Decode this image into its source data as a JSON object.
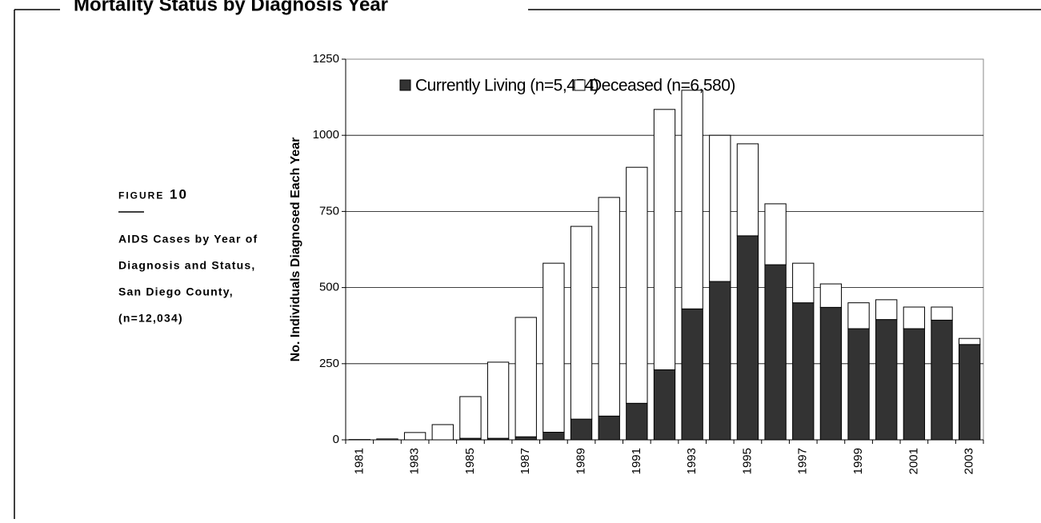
{
  "header": {
    "title": "Mortality Status by Diagnosis Year"
  },
  "figure": {
    "label": "Figure 10",
    "caption": [
      "AIDS Cases by Year of",
      "Diagnosis and Status,",
      "San Diego County,",
      "(n=12,034)"
    ]
  },
  "chart_data": {
    "type": "stacked-bar",
    "y_label": "No. Individuals Diagnosed Each Year",
    "categories": [
      "1981",
      null,
      "1983",
      null,
      "1985",
      null,
      "1987",
      null,
      "1989",
      null,
      "1991",
      null,
      "1993",
      null,
      "1995",
      null,
      "1997",
      null,
      "1999",
      null,
      "2001",
      null,
      "2003"
    ],
    "series": [
      {
        "name": "Currently Living (n=5,454)",
        "color": "#333333",
        "values": [
          0,
          0,
          0,
          0,
          5,
          5,
          10,
          25,
          68,
          78,
          120,
          230,
          430,
          520,
          670,
          575,
          450,
          435,
          365,
          395,
          365,
          393,
          313
        ]
      },
      {
        "name": "Deceased (n=6,580)",
        "color": "#ffffff",
        "values": [
          1,
          3,
          24,
          50,
          137,
          250,
          392,
          555,
          633,
          718,
          775,
          855,
          718,
          480,
          302,
          200,
          130,
          77,
          85,
          65,
          71,
          43,
          20
        ]
      }
    ],
    "ylim": [
      0,
      1250
    ],
    "yticks": [
      0,
      250,
      500,
      750,
      1000,
      1250
    ],
    "grid": true
  }
}
